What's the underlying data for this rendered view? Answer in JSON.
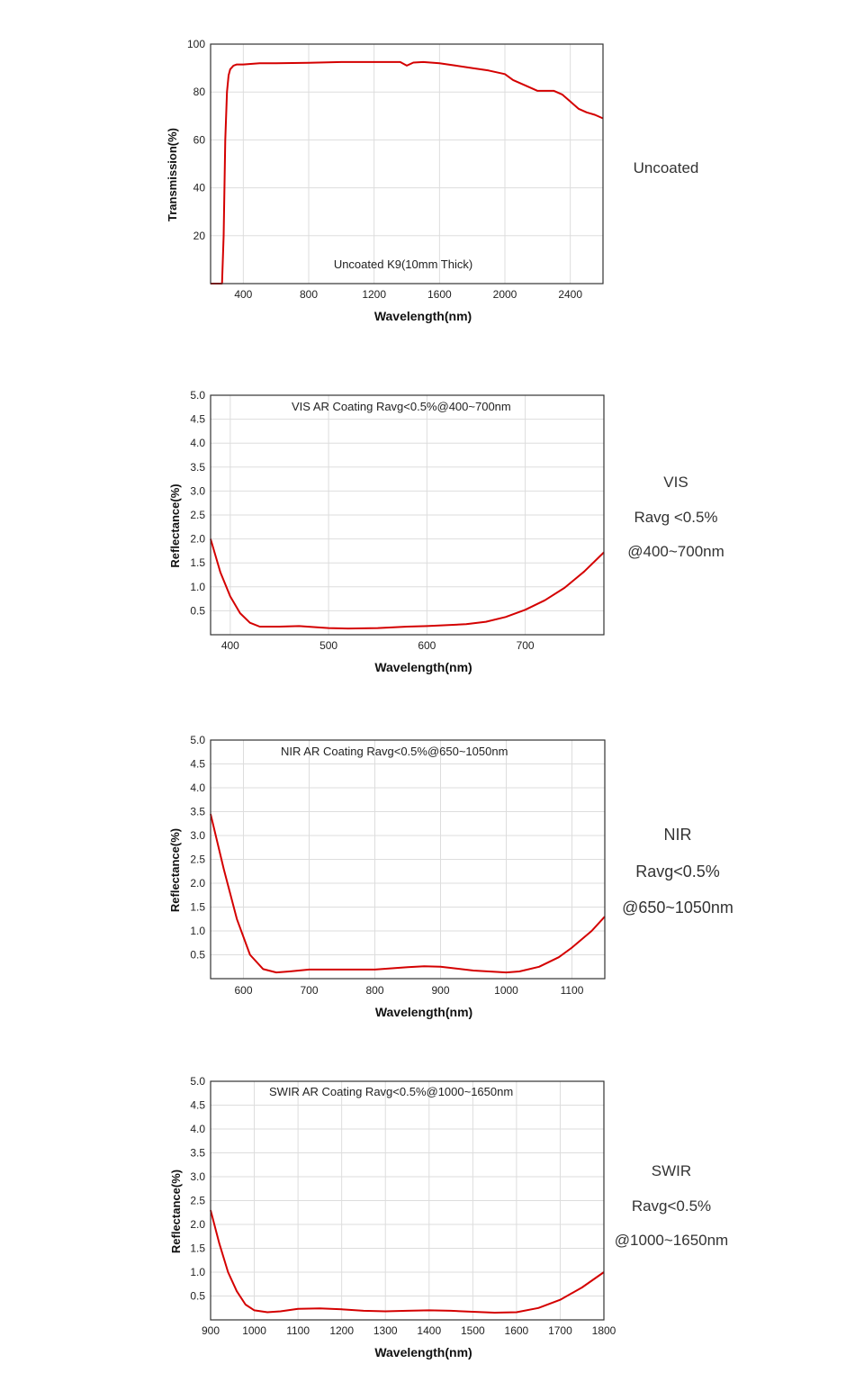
{
  "page": {
    "background": "#ffffff",
    "panel_background": "#ffffff",
    "curve_color": "#d40000",
    "grid_color": "#dddddd"
  },
  "side_labels": [
    {
      "lines": [
        "Uncoated"
      ]
    },
    {
      "lines": [
        "VIS",
        "Ravg <0.5%",
        "@400~700nm"
      ]
    },
    {
      "lines": [
        "NIR",
        "Ravg<0.5%",
        "@650~1050nm"
      ]
    },
    {
      "lines": [
        "SWIR",
        "Ravg<0.5%",
        "@1000~1650nm"
      ]
    }
  ],
  "chart_data": [
    {
      "type": "line",
      "title": "Uncoated K9(10mm Thick)",
      "xlabel": "Wavelength(nm)",
      "ylabel": "Transmission(%)",
      "xlim": [
        200,
        2600
      ],
      "ylim": [
        0,
        100
      ],
      "xticks": [
        400,
        800,
        1200,
        1600,
        2000,
        2400
      ],
      "yticks": [
        20,
        40,
        60,
        80,
        100
      ],
      "grid": true,
      "series": [
        {
          "x": [
            200,
            270,
            280,
            290,
            300,
            310,
            320,
            340,
            360,
            400,
            500,
            600,
            800,
            1000,
            1200,
            1360,
            1400,
            1440,
            1500,
            1600,
            1700,
            1800,
            1900,
            2000,
            2050,
            2100,
            2150,
            2200,
            2250,
            2300,
            2350,
            2400,
            2450,
            2500,
            2550,
            2600
          ],
          "y": [
            0,
            0,
            20,
            60,
            80,
            87,
            89.5,
            91,
            91.5,
            91.5,
            92,
            92,
            92.2,
            92.5,
            92.5,
            92.5,
            91,
            92.3,
            92.5,
            92,
            91,
            90,
            89,
            87.5,
            85,
            83.5,
            82,
            80.5,
            80.5,
            80.5,
            79,
            76,
            73,
            71.5,
            70.5,
            69
          ]
        }
      ]
    },
    {
      "type": "line",
      "title": "VIS AR Coating Ravg<0.5%@400~700nm",
      "xlabel": "Wavelength(nm)",
      "ylabel": "Reflectance(%)",
      "xlim": [
        380,
        780
      ],
      "ylim": [
        0,
        5.0
      ],
      "xticks": [
        400,
        500,
        600,
        700
      ],
      "yticks": [
        0.5,
        1.0,
        1.5,
        2.0,
        2.5,
        3.0,
        3.5,
        4.0,
        4.5,
        5.0
      ],
      "ytick_labels": [
        "0.5",
        "1.0",
        "1.5",
        "2.0",
        "2.5",
        "3.0",
        "3.5",
        "4.0",
        "4.5",
        "5.0"
      ],
      "grid": true,
      "series": [
        {
          "x": [
            380,
            390,
            400,
            410,
            420,
            430,
            450,
            470,
            500,
            520,
            550,
            580,
            600,
            640,
            660,
            680,
            700,
            720,
            740,
            760,
            780
          ],
          "y": [
            2.0,
            1.3,
            0.8,
            0.45,
            0.25,
            0.17,
            0.17,
            0.18,
            0.14,
            0.13,
            0.14,
            0.17,
            0.18,
            0.22,
            0.27,
            0.37,
            0.52,
            0.72,
            0.98,
            1.32,
            1.72
          ]
        }
      ]
    },
    {
      "type": "line",
      "title": "NIR AR Coating Ravg<0.5%@650~1050nm",
      "xlabel": "Wavelength(nm)",
      "ylabel": "Reflectance(%)",
      "xlim": [
        550,
        1150
      ],
      "ylim": [
        0,
        5.0
      ],
      "xticks": [
        600,
        700,
        800,
        900,
        1000,
        1100
      ],
      "yticks": [
        0.5,
        1.0,
        1.5,
        2.0,
        2.5,
        3.0,
        3.5,
        4.0,
        4.5,
        5.0
      ],
      "ytick_labels": [
        "0.5",
        "1.0",
        "1.5",
        "2.0",
        "2.5",
        "3.0",
        "3.5",
        "4.0",
        "4.5",
        "5.0"
      ],
      "grid": true,
      "series": [
        {
          "x": [
            550,
            570,
            590,
            610,
            630,
            650,
            670,
            700,
            750,
            800,
            850,
            875,
            900,
            950,
            1000,
            1020,
            1050,
            1080,
            1100,
            1130,
            1150
          ],
          "y": [
            3.45,
            2.3,
            1.25,
            0.5,
            0.2,
            0.13,
            0.15,
            0.19,
            0.19,
            0.19,
            0.24,
            0.26,
            0.25,
            0.17,
            0.13,
            0.15,
            0.25,
            0.45,
            0.65,
            1.0,
            1.3
          ]
        }
      ]
    },
    {
      "type": "line",
      "title": "SWIR AR Coating Ravg<0.5%@1000~1650nm",
      "xlabel": "Wavelength(nm)",
      "ylabel": "Reflectance(%)",
      "xlim": [
        900,
        1800
      ],
      "ylim": [
        0,
        5.0
      ],
      "xticks": [
        900,
        1000,
        1100,
        1200,
        1300,
        1400,
        1500,
        1600,
        1700,
        1800
      ],
      "yticks": [
        0.5,
        1.0,
        1.5,
        2.0,
        2.5,
        3.0,
        3.5,
        4.0,
        4.5,
        5.0
      ],
      "ytick_labels": [
        "0.5",
        "1.0",
        "1.5",
        "2.0",
        "2.5",
        "3.0",
        "3.5",
        "4.0",
        "4.5",
        "5.0"
      ],
      "grid": true,
      "series": [
        {
          "x": [
            900,
            920,
            940,
            960,
            980,
            1000,
            1030,
            1060,
            1100,
            1150,
            1200,
            1250,
            1300,
            1350,
            1400,
            1450,
            1500,
            1550,
            1600,
            1650,
            1700,
            1750,
            1800
          ],
          "y": [
            2.3,
            1.6,
            1.0,
            0.6,
            0.32,
            0.2,
            0.16,
            0.18,
            0.23,
            0.24,
            0.22,
            0.19,
            0.18,
            0.19,
            0.2,
            0.19,
            0.17,
            0.15,
            0.16,
            0.25,
            0.42,
            0.68,
            1.0
          ]
        }
      ]
    }
  ]
}
